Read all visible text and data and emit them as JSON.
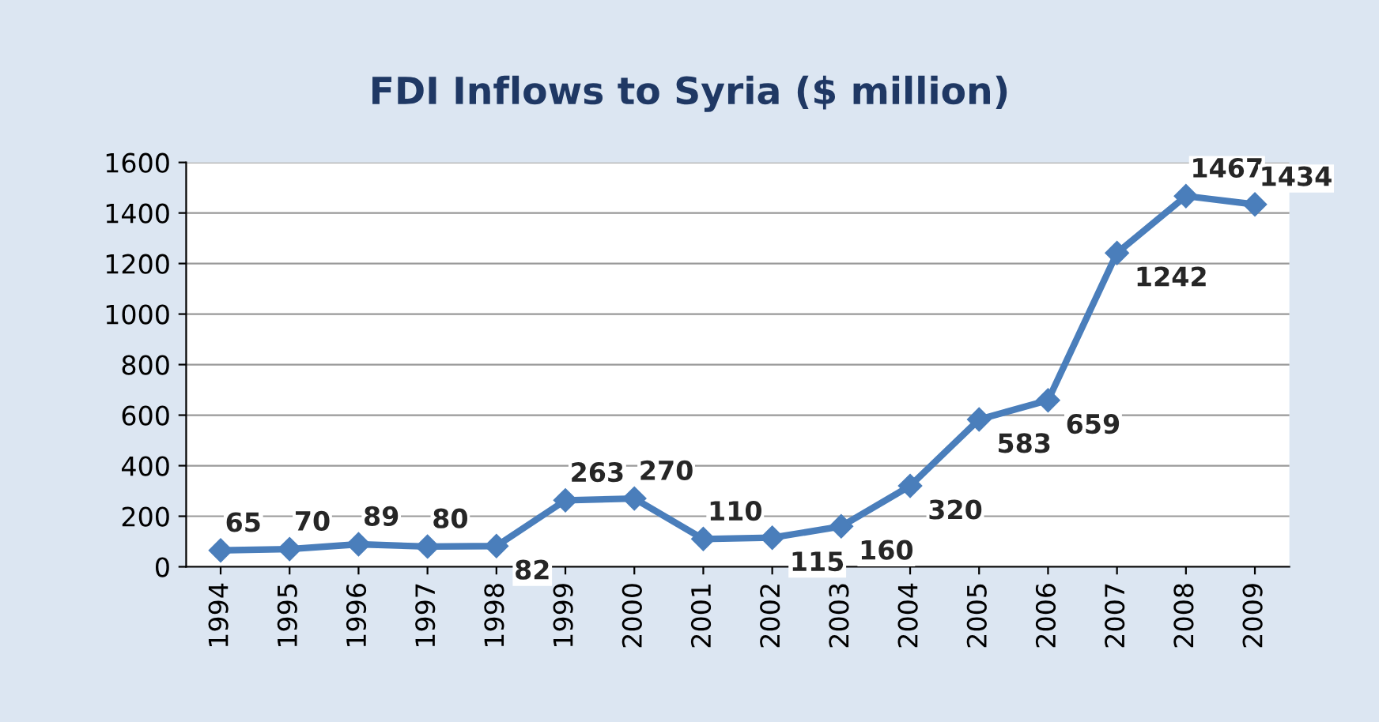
{
  "chart_data": {
    "type": "line",
    "title": "FDI Inflows to Syria ($ million)",
    "categories": [
      "1994",
      "1995",
      "1996",
      "1997",
      "1998",
      "1999",
      "2000",
      "2001",
      "2002",
      "2003",
      "2004",
      "2005",
      "2006",
      "2007",
      "2008",
      "2009"
    ],
    "series": [
      {
        "color": "#4a7ebb",
        "values": [
          65,
          70,
          89,
          80,
          82,
          263,
          270,
          110,
          115,
          160,
          320,
          583,
          659,
          1242,
          1467,
          1434
        ]
      }
    ],
    "ylim": [
      0,
      1600
    ],
    "yticks": [
      0,
      200,
      400,
      600,
      800,
      1000,
      1200,
      1400,
      1600
    ],
    "grid": "y",
    "marker": "diamond",
    "line_style": "solid",
    "data_labels": true,
    "legend": false
  }
}
